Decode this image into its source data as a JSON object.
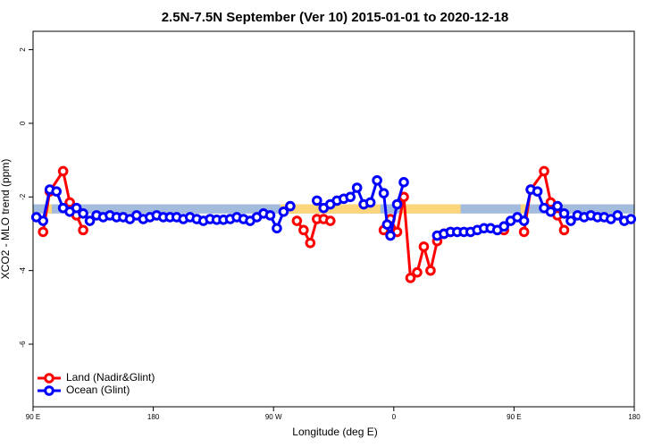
{
  "chart_data": {
    "type": "line",
    "title": "2.5N-7.5N September (Ver 10)   2015-01-01 to 2020-12-18",
    "x_label": "Longitude (deg E)",
    "y_label": "XCO2 - MLO trend (ppm)",
    "xlim": [
      90,
      540
    ],
    "ylim": [
      -7.7,
      2.5
    ],
    "xticks": [
      {
        "value": 90,
        "label": "90 E"
      },
      180,
      {
        "value": 270,
        "label": "90 W"
      },
      {
        "value": 360,
        "label": "0"
      },
      {
        "value": 450,
        "label": "90 E"
      },
      {
        "value": 540,
        "label": "180"
      }
    ],
    "yticks": [
      -6,
      -4,
      -2,
      0,
      2
    ],
    "legend": "bottom-left",
    "band": {
      "ylim": [
        -2.45,
        -2.2
      ],
      "color": "#a3bbdc",
      "land_color": "#fdd57a",
      "land": [
        [
          100,
          104
        ],
        [
          275,
          350
        ],
        [
          365,
          410
        ],
        [
          455,
          460
        ]
      ]
    },
    "series": [
      {
        "name": "Land (Nadir&Glint)",
        "color": "#ff0000",
        "x": [
          97.5,
          102.5,
          112.5,
          117.5,
          122.5,
          127.5,
          132.5,
          287.5,
          292.5,
          297.5,
          302.5,
          307.5,
          312.5,
          317.5,
          352.5,
          357.5,
          362.5,
          367.5,
          372.5,
          377.5,
          382.5,
          387.5,
          392.5,
          397.5,
          402.5,
          407.5,
          442.5,
          447.5,
          457.5,
          462.5,
          472.5,
          477.5,
          482.5,
          487.5
        ],
        "values": [
          -2.95,
          -1.85,
          -1.3,
          -2.15,
          -2.5,
          -2.9,
          null,
          -2.65,
          -2.9,
          -3.25,
          -2.6,
          -2.6,
          -2.65,
          null,
          -2.9,
          -2.6,
          -2.95,
          -2.0,
          -4.2,
          -4.05,
          -3.35,
          -4.0,
          -3.2,
          -3.0,
          -2.95,
          null,
          -2.9,
          null,
          -2.95,
          -1.8,
          -1.3,
          -2.15,
          -2.5,
          -2.9
        ]
      },
      {
        "name": "Ocean (Glint)",
        "color": "#0000ff",
        "x": [
          92.5,
          97.5,
          102.5,
          107.5,
          112.5,
          117.5,
          122.5,
          127.5,
          132.5,
          137.5,
          142.5,
          147.5,
          152.5,
          157.5,
          162.5,
          167.5,
          172.5,
          177.5,
          182.5,
          187.5,
          192.5,
          197.5,
          202.5,
          207.5,
          212.5,
          217.5,
          222.5,
          227.5,
          232.5,
          237.5,
          242.5,
          247.5,
          252.5,
          257.5,
          262.5,
          267.5,
          272.5,
          277.5,
          282.5,
          287.5,
          302.5,
          307.5,
          312.5,
          317.5,
          322.5,
          327.5,
          332.5,
          337.5,
          342.5,
          347.5,
          352.5,
          355,
          357.5,
          362.5,
          367.5,
          372.5,
          392.5,
          397.5,
          402.5,
          407.5,
          412.5,
          417.5,
          422.5,
          427.5,
          432.5,
          437.5,
          442.5,
          447.5,
          452.5,
          457.5,
          462.5,
          467.5,
          472.5,
          477.5,
          482.5,
          487.5,
          492.5,
          497.5,
          502.5,
          507.5,
          512.5,
          517.5,
          522.5,
          527.5,
          532.5,
          537.5
        ],
        "values": [
          -2.55,
          -2.65,
          -1.8,
          -1.85,
          -2.3,
          -2.4,
          -2.3,
          -2.45,
          -2.65,
          -2.5,
          -2.55,
          -2.5,
          -2.55,
          -2.55,
          -2.6,
          -2.5,
          -2.6,
          -2.55,
          -2.5,
          -2.55,
          -2.55,
          -2.55,
          -2.6,
          -2.55,
          -2.6,
          -2.65,
          -2.6,
          -2.62,
          -2.62,
          -2.6,
          -2.55,
          -2.6,
          -2.65,
          -2.55,
          -2.45,
          -2.5,
          -2.85,
          -2.4,
          -2.25,
          null,
          -2.1,
          -2.3,
          -2.2,
          -2.1,
          -2.05,
          -2.0,
          -1.75,
          -2.2,
          -2.15,
          -1.55,
          -1.9,
          -2.75,
          -3.05,
          -2.2,
          -1.6,
          null,
          -3.05,
          -3.0,
          -2.95,
          -2.95,
          -2.95,
          -2.95,
          -2.9,
          -2.85,
          -2.85,
          -2.9,
          -2.8,
          -2.65,
          -2.55,
          -2.65,
          -1.8,
          -1.85,
          -2.3,
          -2.4,
          -2.25,
          -2.45,
          -2.65,
          -2.5,
          -2.55,
          -2.5,
          -2.55,
          -2.55,
          -2.6,
          -2.5,
          -2.65,
          -2.6
        ]
      }
    ]
  }
}
